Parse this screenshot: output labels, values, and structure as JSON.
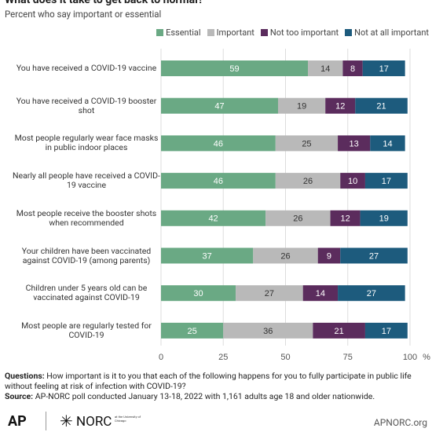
{
  "chart_data": {
    "type": "stacked-bar-horizontal",
    "title": "What does it take to get back to normal?",
    "subtitle": "Percent who say important or essential",
    "categories": [
      "You have received a COVID-19 vaccine",
      "You have received a COVID-19 booster shot",
      "Most people regularly wear face masks in public indoor places",
      "Nearly all people have received a COVID-19 vaccine",
      "Most people receive the booster shots when recommended",
      "Your children have been vaccinated against COVID-19 (among parents)",
      "Children under 5 years old can be vaccinated against COVID-19",
      "Most people are regularly tested for COVID-19"
    ],
    "series": [
      {
        "name": "Essential",
        "color": "#6aa984",
        "values": [
          59,
          47,
          46,
          46,
          42,
          37,
          30,
          25
        ]
      },
      {
        "name": "Important",
        "color": "#b9b9b9",
        "values": [
          14,
          19,
          25,
          26,
          26,
          26,
          27,
          36
        ]
      },
      {
        "name": "Not too important",
        "color": "#5b2c5d",
        "values": [
          8,
          12,
          13,
          10,
          12,
          9,
          14,
          21
        ]
      },
      {
        "name": "Not at all important",
        "color": "#1d5b7d",
        "values": [
          17,
          21,
          14,
          17,
          19,
          27,
          27,
          17
        ]
      }
    ],
    "xlim": [
      0,
      100
    ],
    "xticks": [
      0,
      25,
      50,
      75,
      100
    ],
    "x_unit": "%",
    "grid": true
  },
  "footer": {
    "questions_label": "Questions:",
    "questions_text": "How important is it to you that each of the following happens for you to fully participate in public life without feeling at risk of infection with COVID-19?",
    "source_label": "Source:",
    "source_text": "AP-NORC poll conducted January 13-18, 2022 with 1,161 adults age 18 and older nationwide.",
    "ap_logo": "AP",
    "norc_logo": "NORC",
    "norc_tagline": "at the University of Chicago",
    "site": "APNORC.org"
  }
}
